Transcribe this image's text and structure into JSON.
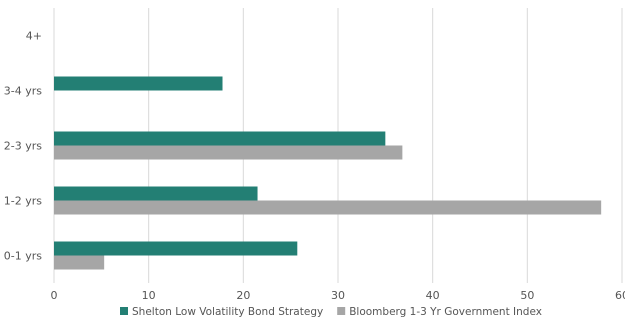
{
  "chart_data": {
    "type": "bar",
    "orientation": "horizontal",
    "categories": [
      "0-1 yrs",
      "1-2 yrs",
      "2-3 yrs",
      "3-4 yrs",
      "4+"
    ],
    "series": [
      {
        "name": "Shelton Low Volatility Bond Strategy",
        "values": [
          25.7,
          21.5,
          35.0,
          17.8,
          0
        ],
        "color": "#237f74"
      },
      {
        "name": "Bloomberg 1-3 Yr Government Index",
        "values": [
          5.3,
          57.8,
          36.8,
          0,
          0
        ],
        "color": "#a6a6a6"
      }
    ],
    "x_ticks": [
      "0",
      "10",
      "20",
      "30",
      "40",
      "50",
      "60"
    ],
    "xlim": [
      0,
      60
    ],
    "grid": true,
    "legend_position": "bottom",
    "title": "",
    "xlabel": "",
    "ylabel": ""
  }
}
